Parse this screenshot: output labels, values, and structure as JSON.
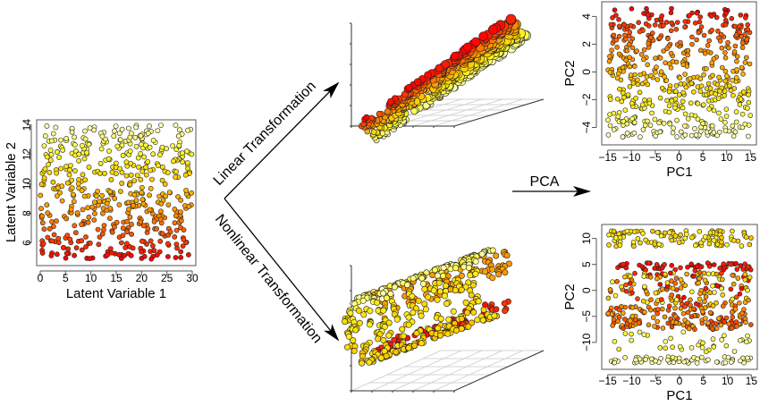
{
  "figure": {
    "transforms": {
      "linear_label": "Linear Transformation",
      "nonlinear_label": "Nonlinear Transformation",
      "pca_label": "PCA"
    },
    "colors": {
      "point_stroke": "#222222",
      "arrow": "#000000",
      "frame": "#555555",
      "grid3d": "#c8c8c8",
      "colormap": [
        "#ff0000",
        "#ff4a00",
        "#ff8c00",
        "#ffb400",
        "#ffe000",
        "#ffff40",
        "#ffffc0"
      ]
    }
  },
  "chart_data": [
    {
      "id": "latent",
      "type": "scatter",
      "title": "",
      "xlabel": "Latent Variable 1",
      "ylabel": "Latent Variable 2",
      "xlim": [
        0,
        30
      ],
      "ylim": [
        4.7,
        14.1
      ],
      "xticks": [
        0,
        5,
        10,
        15,
        20,
        25,
        30
      ],
      "yticks": [
        6,
        8,
        10,
        12,
        14
      ],
      "n_points": 1000,
      "color_by": "Latent Variable 2 (red low → pale yellow high)",
      "grid": false
    },
    {
      "id": "linear_3d",
      "type": "scatter",
      "title": "",
      "description": "3D scatter of linearly transformed latent data: points lie on a tilted plane (red along the upper edge, pale yellow along the lower edge)",
      "n_points": 1000,
      "grid": true
    },
    {
      "id": "nonlinear_3d",
      "type": "scatter",
      "title": "",
      "description": "3D scatter of nonlinearly transformed data: points lie on a rolled cylindrical surface (red interior, orange top, yellow front, pale yellow top ridge)",
      "n_points": 1000,
      "grid": true
    },
    {
      "id": "pca_linear",
      "type": "scatter",
      "title": "",
      "xlabel": "PC1",
      "ylabel": "PC2",
      "xlim": [
        -15.5,
        15.5
      ],
      "ylim": [
        -5,
        4.8
      ],
      "xticks": [
        -15,
        -10,
        -5,
        0,
        5,
        10,
        15
      ],
      "yticks": [
        -4,
        -2,
        0,
        2,
        4
      ],
      "n_points": 1000,
      "color_by": "red at PC2 high → pale yellow at PC2 low",
      "grid": false
    },
    {
      "id": "pca_nonlinear",
      "type": "scatter",
      "title": "",
      "xlabel": "PC1",
      "ylabel": "PC2",
      "xlim": [
        -15.5,
        15.5
      ],
      "ylim": [
        -14.5,
        12
      ],
      "xticks": [
        -15,
        -10,
        -5,
        0,
        5,
        10,
        15
      ],
      "yticks": [
        -10,
        -5,
        0,
        5,
        10
      ],
      "n_points": 1000,
      "bands": [
        {
          "y_range": [
            8.5,
            11.5
          ],
          "color": "yellow"
        },
        {
          "y_range": [
            3.5,
            5.5
          ],
          "color": "red"
        },
        {
          "y_range": [
            -3,
            3
          ],
          "color": "mixed red/orange/yellow"
        },
        {
          "y_range": [
            -7.5,
            -3
          ],
          "color": "orange-red"
        },
        {
          "y_range": [
            -12,
            -8
          ],
          "color": "sparse pale yellow"
        },
        {
          "y_range": [
            -14,
            -12.5
          ],
          "color": "pale yellow"
        }
      ],
      "grid": false
    }
  ]
}
